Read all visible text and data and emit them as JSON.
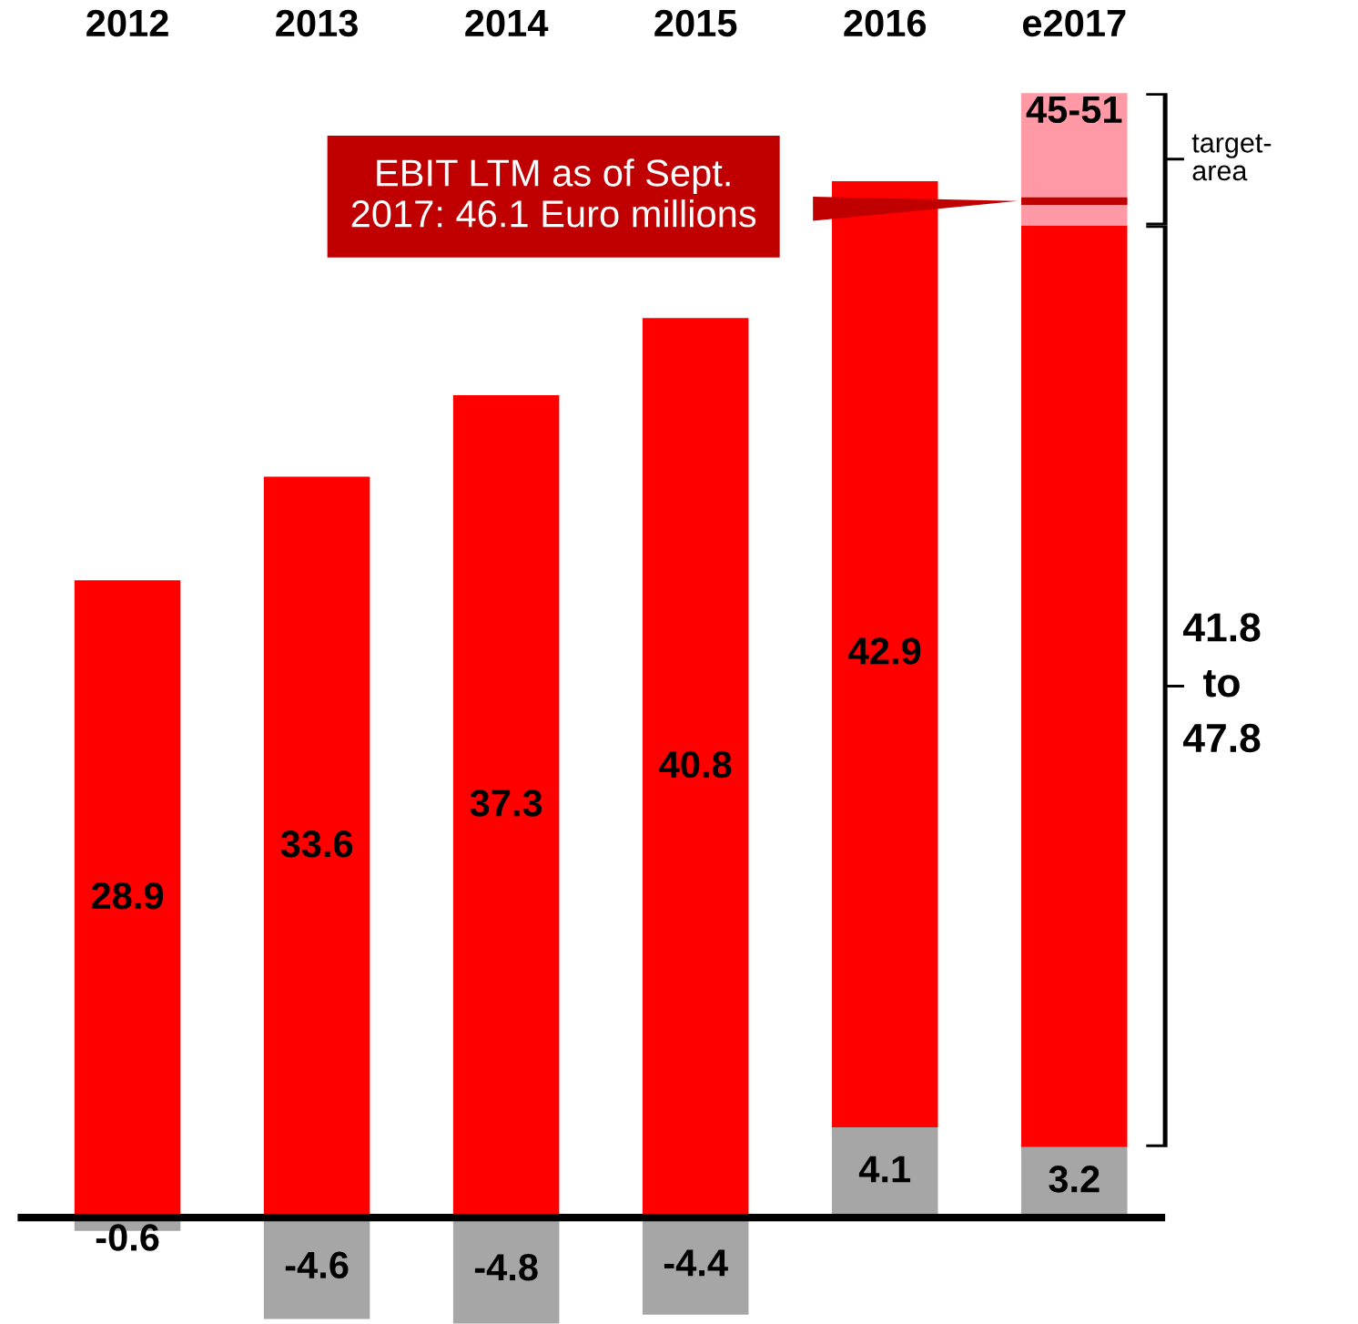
{
  "chart_data": {
    "type": "bar",
    "stacked": true,
    "categories": [
      "2012",
      "2013",
      "2014",
      "2015",
      "2016",
      "e2017"
    ],
    "series": [
      {
        "color": "#a6a6a6",
        "values": [
          -0.6,
          -4.6,
          -4.8,
          -4.4,
          4.1,
          3.2
        ],
        "value_labels": [
          "-0.6",
          "-4.6",
          "-4.8",
          "-4.4",
          "4.1",
          "3.2"
        ]
      },
      {
        "color": "#ff0000",
        "values": [
          28.9,
          33.6,
          37.3,
          40.8,
          42.9,
          41.8
        ],
        "value_labels": [
          "28.9",
          "33.6",
          "37.3",
          "40.8",
          "42.9",
          null
        ]
      },
      {
        "color": "#ff99a6",
        "values": [
          null,
          null,
          null,
          null,
          null,
          6
        ],
        "value_labels": [
          null,
          null,
          null,
          null,
          null,
          "45-51"
        ]
      }
    ],
    "annotations": [
      "EBIT LTM as of Sept.\n2017: 46.1 Euro millions",
      "41.8\nto\n47.8",
      "target-\narea"
    ],
    "ref_lines": [
      {
        "axis": "y",
        "value": 46.1,
        "color": "#c00000"
      }
    ]
  }
}
